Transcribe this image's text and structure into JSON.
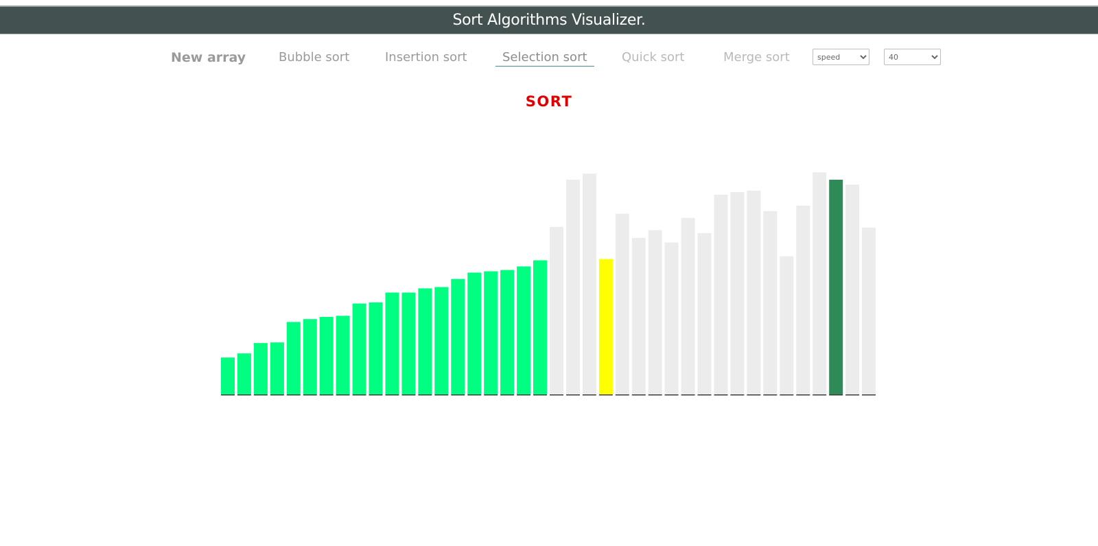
{
  "header": {
    "title": "Sort Algorithms Visualizer."
  },
  "nav": {
    "items": [
      {
        "label": "New array"
      },
      {
        "label": "Bubble sort"
      },
      {
        "label": "Insertion sort"
      },
      {
        "label": "Selection sort"
      },
      {
        "label": "Quick sort"
      },
      {
        "label": "Merge sort"
      }
    ],
    "speed_select": {
      "selected": "speed"
    },
    "size_select": {
      "selected": "40"
    }
  },
  "sort_button": {
    "label": "SORT"
  },
  "colors": {
    "sorted": "#00ff80",
    "unsorted": "#ececec",
    "current": "#ffff00",
    "minimum": "#2e8b57",
    "baseline": "#3a3a3a",
    "sort_label": "#e10000",
    "header_bg": "#435250"
  },
  "chart_data": {
    "type": "bar",
    "ylim": [
      0,
      100
    ],
    "values": [
      16.8,
      18.7,
      23.4,
      23.7,
      33.0,
      34.3,
      35.3,
      35.8,
      41.4,
      41.9,
      46.4,
      46.4,
      48.3,
      48.9,
      52.6,
      55.5,
      56.1,
      56.7,
      58.3,
      61.1,
      76.3,
      97.8,
      100.6,
      61.7,
      82.3,
      71.3,
      74.8,
      69.2,
      80.4,
      73.5,
      91.0,
      92.2,
      92.8,
      83.5,
      62.9,
      86.0,
      101.2,
      97.8,
      95.6,
      76.0
    ],
    "status": [
      "sorted",
      "sorted",
      "sorted",
      "sorted",
      "sorted",
      "sorted",
      "sorted",
      "sorted",
      "sorted",
      "sorted",
      "sorted",
      "sorted",
      "sorted",
      "sorted",
      "sorted",
      "sorted",
      "sorted",
      "sorted",
      "sorted",
      "sorted",
      "unsorted",
      "unsorted",
      "unsorted",
      "current",
      "unsorted",
      "unsorted",
      "unsorted",
      "unsorted",
      "unsorted",
      "unsorted",
      "unsorted",
      "unsorted",
      "unsorted",
      "unsorted",
      "unsorted",
      "unsorted",
      "unsorted",
      "minimum",
      "unsorted",
      "unsorted"
    ]
  }
}
